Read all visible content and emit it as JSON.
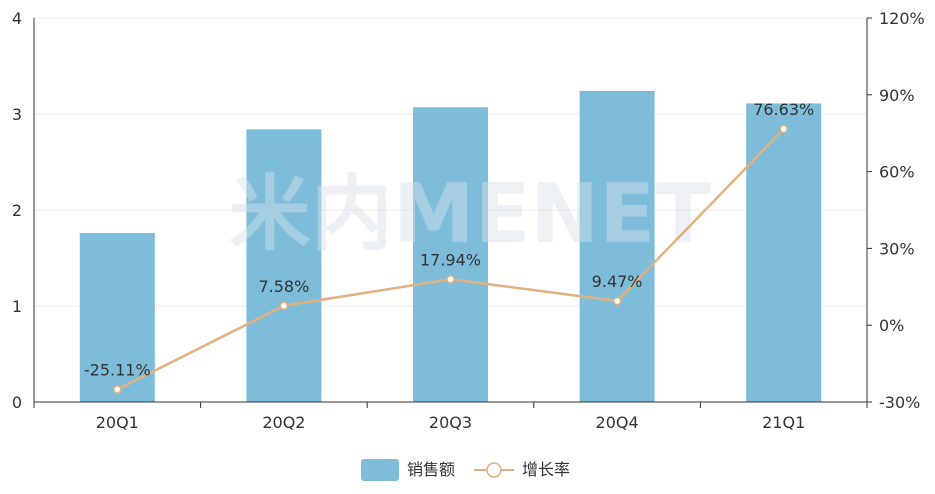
{
  "chart_data": {
    "type": "bar",
    "categories": [
      "20Q1",
      "20Q2",
      "20Q3",
      "20Q4",
      "21Q1"
    ],
    "series": [
      {
        "name": "销售额",
        "type": "bar",
        "axis": "left",
        "color": "#7dbdd9",
        "values": [
          1.76,
          2.84,
          3.07,
          3.24,
          3.11
        ]
      },
      {
        "name": "增长率",
        "type": "line",
        "axis": "right",
        "color": "#e3b07e",
        "values": [
          -25.11,
          7.58,
          17.94,
          9.47,
          76.63
        ],
        "labels": [
          "-25.11%",
          "7.58%",
          "17.94%",
          "9.47%",
          "76.63%"
        ]
      }
    ],
    "y_left": {
      "min": 0,
      "max": 4,
      "ticks": [
        "0",
        "1",
        "2",
        "3",
        "4"
      ]
    },
    "y_right": {
      "min": -30,
      "max": 120,
      "ticks": [
        "-30%",
        "0%",
        "30%",
        "60%",
        "90%",
        "120%"
      ]
    },
    "grid": true,
    "legend_position": "bottom-center",
    "watermark": "米内MENET"
  }
}
